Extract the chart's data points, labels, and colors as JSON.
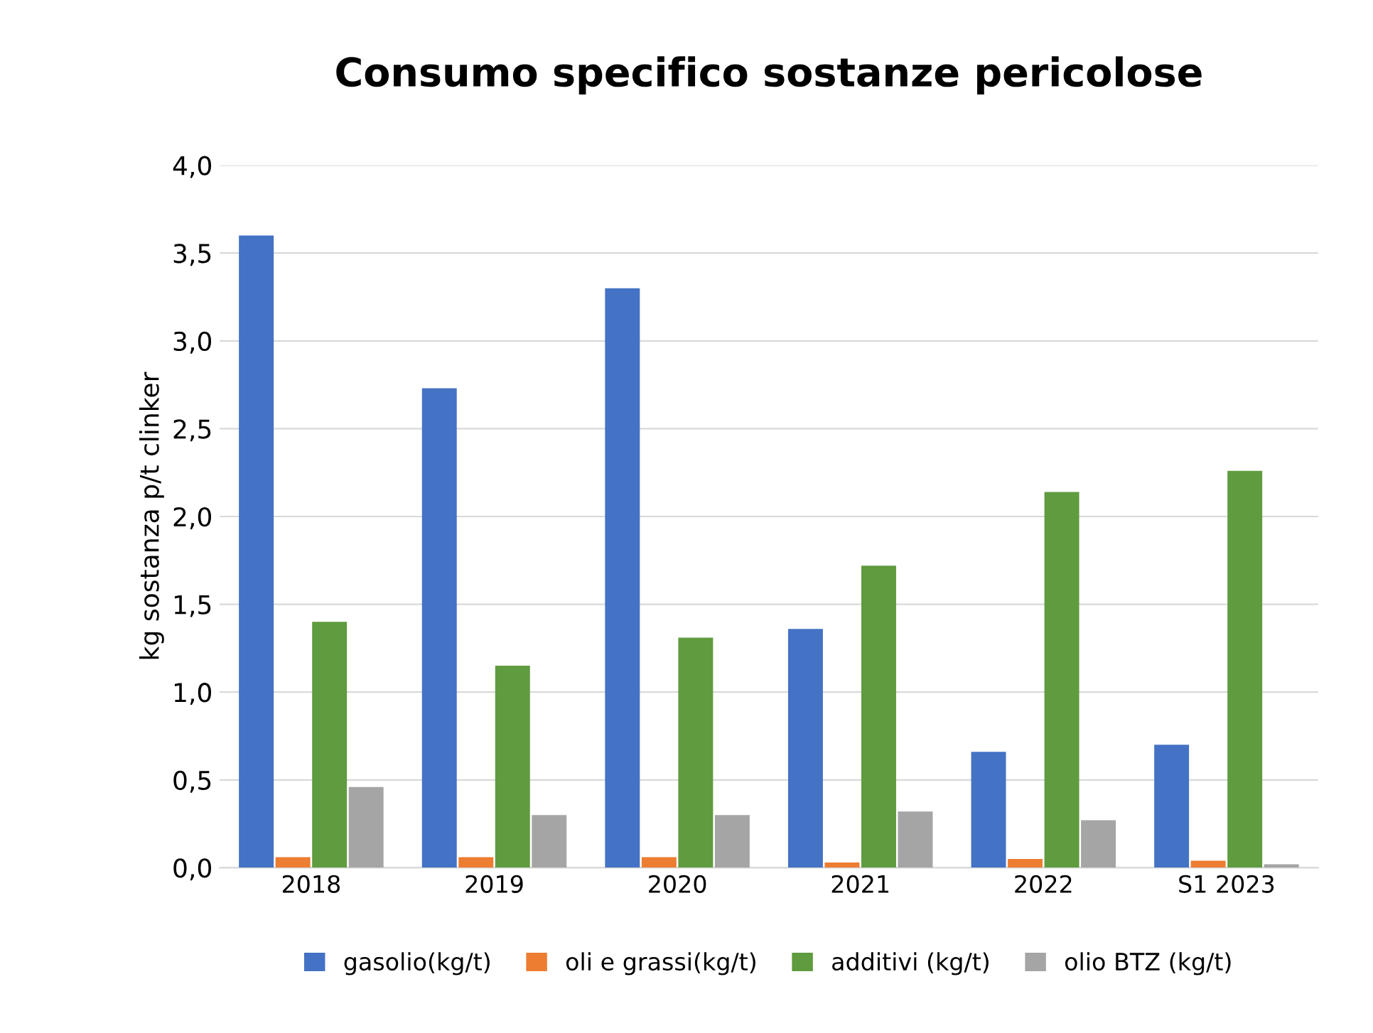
{
  "chart_data": {
    "type": "bar",
    "title": "Consumo specifico sostanze pericolose",
    "ylabel": "kg sostanza p/t clinker",
    "categories": [
      "2018",
      "2019",
      "2020",
      "2021",
      "2022",
      "S1 2023"
    ],
    "series": [
      {
        "name": "gasolio(kg/t)",
        "color": "#4472c4",
        "values": [
          3.6,
          2.73,
          3.3,
          1.36,
          0.66,
          0.7
        ]
      },
      {
        "name": "oli e grassi(kg/t)",
        "color": "#ed7d31",
        "values": [
          0.06,
          0.06,
          0.06,
          0.03,
          0.05,
          0.04
        ]
      },
      {
        "name": "additivi (kg/t)",
        "color": "#5f9b3f",
        "values": [
          1.4,
          1.15,
          1.31,
          1.72,
          2.14,
          2.26
        ]
      },
      {
        "name": "olio BTZ (kg/t)",
        "color": "#a5a5a5",
        "values": [
          0.46,
          0.3,
          0.3,
          0.32,
          0.27,
          0.02
        ]
      }
    ],
    "ylim": [
      0,
      4
    ],
    "yticks": [
      {
        "value": 0,
        "label": "0,0"
      },
      {
        "value": 0.5,
        "label": "0,5"
      },
      {
        "value": 1,
        "label": "1,0"
      },
      {
        "value": 1.5,
        "label": "1,5"
      },
      {
        "value": 2,
        "label": "2,0"
      },
      {
        "value": 2.5,
        "label": "2,5"
      },
      {
        "value": 3,
        "label": "3,0"
      },
      {
        "value": 3.5,
        "label": "3,5"
      },
      {
        "value": 4,
        "label": "4,0"
      }
    ],
    "grid": "y",
    "legend": "bottom"
  }
}
